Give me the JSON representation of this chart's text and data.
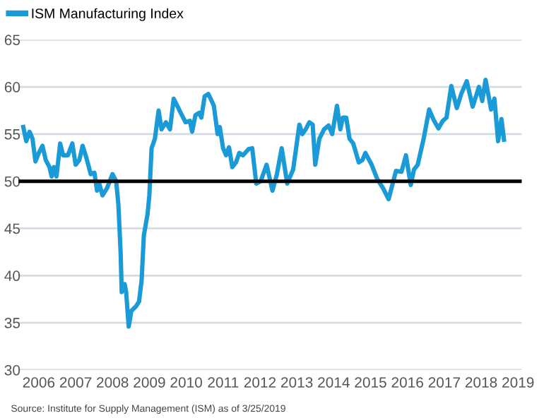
{
  "chart_data": {
    "type": "line",
    "legend": "top left",
    "grid": "y",
    "marker": "none",
    "line_style": "solid",
    "ylim": [
      30,
      65
    ],
    "yticks": [
      30,
      35,
      40,
      45,
      50,
      55,
      60,
      65
    ],
    "xlim": [
      2005.95,
      2019.6
    ],
    "xticks": [
      {
        "value": 2006.5,
        "label": "2006"
      },
      {
        "value": 2007.5,
        "label": "2007"
      },
      {
        "value": 2008.5,
        "label": "2008"
      },
      {
        "value": 2009.5,
        "label": "2009"
      },
      {
        "value": 2010.5,
        "label": "2010"
      },
      {
        "value": 2011.5,
        "label": "2011"
      },
      {
        "value": 2012.5,
        "label": "2012"
      },
      {
        "value": 2013.5,
        "label": "2013"
      },
      {
        "value": 2014.5,
        "label": "2014"
      },
      {
        "value": 2015.5,
        "label": "2015"
      },
      {
        "value": 2016.5,
        "label": "2016"
      },
      {
        "value": 2017.5,
        "label": "2017"
      },
      {
        "value": 2018.5,
        "label": "2018"
      },
      {
        "value": 2019.5,
        "label": "2019"
      }
    ],
    "ref_lines": [
      {
        "axis": "y",
        "value": 50,
        "color": "#000000"
      }
    ],
    "annotations": [
      "Source: Institute for Supply Management (ISM) as of 3/25/2019"
    ],
    "series": [
      {
        "name": "ISM Manufacturing Index",
        "color": "#1a9ad6",
        "x": [
          2006.08,
          2006.16,
          2006.25,
          2006.33,
          2006.41,
          2006.5,
          2006.6,
          2006.69,
          2006.79,
          2006.85,
          2006.91,
          2006.98,
          2007.08,
          2007.16,
          2007.29,
          2007.41,
          2007.5,
          2007.6,
          2007.69,
          2007.79,
          2007.91,
          2008.01,
          2008.08,
          2008.14,
          2008.23,
          2008.35,
          2008.5,
          2008.6,
          2008.66,
          2008.72,
          2008.75,
          2008.83,
          2008.87,
          2008.94,
          2009.01,
          2009.14,
          2009.22,
          2009.29,
          2009.35,
          2009.45,
          2009.5,
          2009.56,
          2009.65,
          2009.75,
          2009.83,
          2009.95,
          2010.06,
          2010.16,
          2010.35,
          2010.48,
          2010.6,
          2010.66,
          2010.75,
          2010.85,
          2010.91,
          2011.0,
          2011.1,
          2011.25,
          2011.35,
          2011.41,
          2011.5,
          2011.58,
          2011.66,
          2011.75,
          2011.85,
          2011.94,
          2012.04,
          2012.19,
          2012.29,
          2012.4,
          2012.52,
          2012.68,
          2012.84,
          2012.96,
          2013.09,
          2013.24,
          2013.4,
          2013.57,
          2013.65,
          2013.74,
          2013.84,
          2013.93,
          2014.0,
          2014.11,
          2014.24,
          2014.36,
          2014.46,
          2014.59,
          2014.68,
          2014.75,
          2014.84,
          2014.93,
          2015.03,
          2015.18,
          2015.28,
          2015.36,
          2015.53,
          2015.68,
          2015.84,
          2015.99,
          2016.19,
          2016.34,
          2016.46,
          2016.59,
          2016.68,
          2016.78,
          2016.94,
          2017.09,
          2017.21,
          2017.34,
          2017.46,
          2017.56,
          2017.69,
          2017.84,
          2017.96,
          2018.11,
          2018.27,
          2018.44,
          2018.53,
          2018.62,
          2018.77,
          2018.86,
          2018.96,
          2019.05,
          2019.12
        ],
        "values": [
          55.75,
          54.25,
          55.25,
          54.5,
          52.1,
          53,
          53.75,
          52.25,
          51.5,
          50.5,
          51.5,
          50.5,
          54,
          52.75,
          52.75,
          54,
          51.75,
          52.25,
          53.75,
          52.5,
          50.75,
          50.9,
          49,
          49.75,
          48.5,
          49.25,
          50.75,
          50,
          47.5,
          42.5,
          38.25,
          39.1,
          38.25,
          34.6,
          36.25,
          36.75,
          37.25,
          39.5,
          44.25,
          46.5,
          48.5,
          53.5,
          54.5,
          57.5,
          55.5,
          56.25,
          55.5,
          58.75,
          57.25,
          56.25,
          56.4,
          55.25,
          57,
          57.25,
          56.75,
          59,
          59.25,
          58,
          55,
          55.75,
          53.5,
          52.75,
          53.6,
          51.5,
          52,
          53,
          52.75,
          53.4,
          53.5,
          49.75,
          50,
          51.75,
          49,
          50.75,
          53.5,
          49.75,
          51.25,
          56,
          55,
          55.5,
          56.25,
          56,
          51.75,
          54.5,
          55.5,
          55.9,
          55,
          58,
          55.5,
          56.75,
          56.75,
          54.5,
          54,
          52,
          52.25,
          53,
          51.75,
          50.25,
          49.25,
          48.1,
          51.1,
          51,
          52.75,
          49.6,
          51.25,
          51.75,
          54.5,
          57.6,
          56.5,
          55.6,
          56.4,
          56.75,
          60.1,
          57.75,
          59.25,
          60.6,
          57.9,
          60,
          58.5,
          60.75,
          57.6,
          58.75,
          54.25,
          56.6,
          54.4
        ]
      }
    ]
  }
}
